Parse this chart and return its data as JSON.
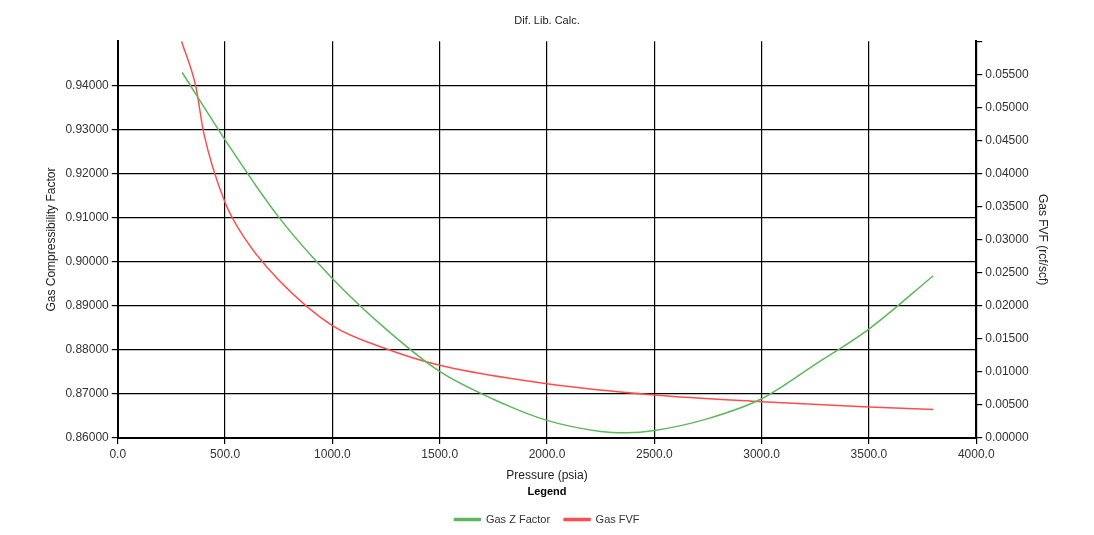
{
  "chart_data": {
    "type": "line",
    "title": "Dif. Lib. Calc.",
    "xlabel": "Pressure (psia)",
    "ylabel": "Gas Compressibility Factor",
    "y2label": "Gas FVF (rcf/scf)",
    "legend_title": "Legend",
    "legend": "bottom",
    "grid": true,
    "marker": "none",
    "line_style": "solid",
    "xlim": [
      0,
      4000
    ],
    "xticks": [
      {
        "value": 0,
        "label": "0.0"
      },
      {
        "value": 500,
        "label": "500.0"
      },
      {
        "value": 1000,
        "label": "1000.0"
      },
      {
        "value": 1500,
        "label": "1500.0"
      },
      {
        "value": 2000,
        "label": "2000.0"
      },
      {
        "value": 2500,
        "label": "2500.0"
      },
      {
        "value": 3000,
        "label": "3000.0"
      },
      {
        "value": 3500,
        "label": "3500.0"
      },
      {
        "value": 4000,
        "label": "4000.0"
      }
    ],
    "ylim": [
      0.86,
      0.95
    ],
    "yticks": [
      {
        "value": 0.86,
        "label": "0.86000"
      },
      {
        "value": 0.87,
        "label": "0.87000"
      },
      {
        "value": 0.88,
        "label": "0.88000"
      },
      {
        "value": 0.89,
        "label": "0.89000"
      },
      {
        "value": 0.9,
        "label": "0.90000"
      },
      {
        "value": 0.91,
        "label": "0.91000"
      },
      {
        "value": 0.92,
        "label": "0.92000"
      },
      {
        "value": 0.93,
        "label": "0.93000"
      },
      {
        "value": 0.94,
        "label": "0.94000"
      }
    ],
    "y2lim": [
      0,
      0.06
    ],
    "y2ticks": [
      {
        "value": 0,
        "label": "0.00000"
      },
      {
        "value": 0.005,
        "label": "0.00500"
      },
      {
        "value": 0.01,
        "label": "0.01000"
      },
      {
        "value": 0.015,
        "label": "0.01500"
      },
      {
        "value": 0.02,
        "label": "0.02000"
      },
      {
        "value": 0.025,
        "label": "0.02500"
      },
      {
        "value": 0.03,
        "label": "0.03000"
      },
      {
        "value": 0.035,
        "label": "0.03500"
      },
      {
        "value": 0.04,
        "label": "0.04000"
      },
      {
        "value": 0.045,
        "label": "0.04500"
      },
      {
        "value": 0.05,
        "label": "0.05000"
      },
      {
        "value": 0.055,
        "label": "0.05500"
      },
      {
        "value": 0.06,
        "label": null
      }
    ],
    "series": [
      {
        "name": "Gas Z Factor",
        "color": "#5cb85c",
        "x": [
          300,
          500,
          750,
          1000,
          1250,
          1500,
          1750,
          2000,
          2250,
          2370,
          2500,
          2750,
          3000,
          3250,
          3500,
          3800
        ],
        "values": [
          0.9429,
          0.9276,
          0.9101,
          0.8962,
          0.8847,
          0.8751,
          0.8688,
          0.864,
          0.8615,
          0.8612,
          0.8617,
          0.8644,
          0.8689,
          0.8767,
          0.8847,
          0.8968
        ]
      },
      {
        "name": "Gas FVF",
        "color": "#ff4d4d",
        "axis": "y2",
        "x": [
          297,
          364,
          400,
          500,
          600,
          750,
          1000,
          1250,
          1500,
          2000,
          2500,
          3000,
          3500,
          3800
        ],
        "values": [
          0.06,
          0.0531,
          0.0462,
          0.0356,
          0.0298,
          0.0239,
          0.017,
          0.0135,
          0.011,
          0.0082,
          0.0065,
          0.0055,
          0.0047,
          0.0043
        ]
      }
    ]
  }
}
